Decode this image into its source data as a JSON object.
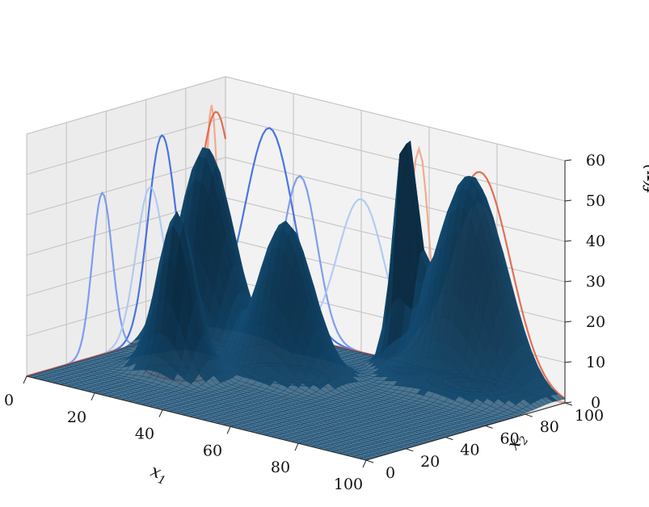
{
  "chart_data": {
    "type": "surface3d",
    "xlabel": "x",
    "xlabel_sub": "1",
    "ylabel": "x",
    "ylabel_sub": "2",
    "zlabel_prefix": "f(",
    "zlabel_bold": "x",
    "zlabel_suffix": ")",
    "xlim": [
      0,
      100
    ],
    "ylim": [
      0,
      100
    ],
    "zlim": [
      0,
      60
    ],
    "x_ticks": [
      "0",
      "20",
      "40",
      "60",
      "80",
      "100"
    ],
    "y_ticks": [
      "0",
      "20",
      "40",
      "60",
      "80",
      "100"
    ],
    "z_ticks": [
      "0",
      "10",
      "20",
      "30",
      "40",
      "50",
      "60"
    ],
    "grid": true,
    "surface_color": "#1f77b4",
    "peaks": [
      {
        "x1": 13,
        "x2": 68,
        "height": 50,
        "sigma": 7
      },
      {
        "x1": 22,
        "x2": 38,
        "height": 40,
        "sigma": 5
      },
      {
        "x1": 40,
        "x2": 62,
        "height": 38,
        "sigma": 7
      },
      {
        "x1": 57,
        "x2": 93,
        "height": 54,
        "sigma": 3
      },
      {
        "x1": 75,
        "x2": 95,
        "height": 52,
        "sigma": 9
      }
    ],
    "projection_colors": [
      "#2d5fe0",
      "#6a8ff0",
      "#a7c4f5",
      "#f2a07e",
      "#e0583a"
    ]
  }
}
